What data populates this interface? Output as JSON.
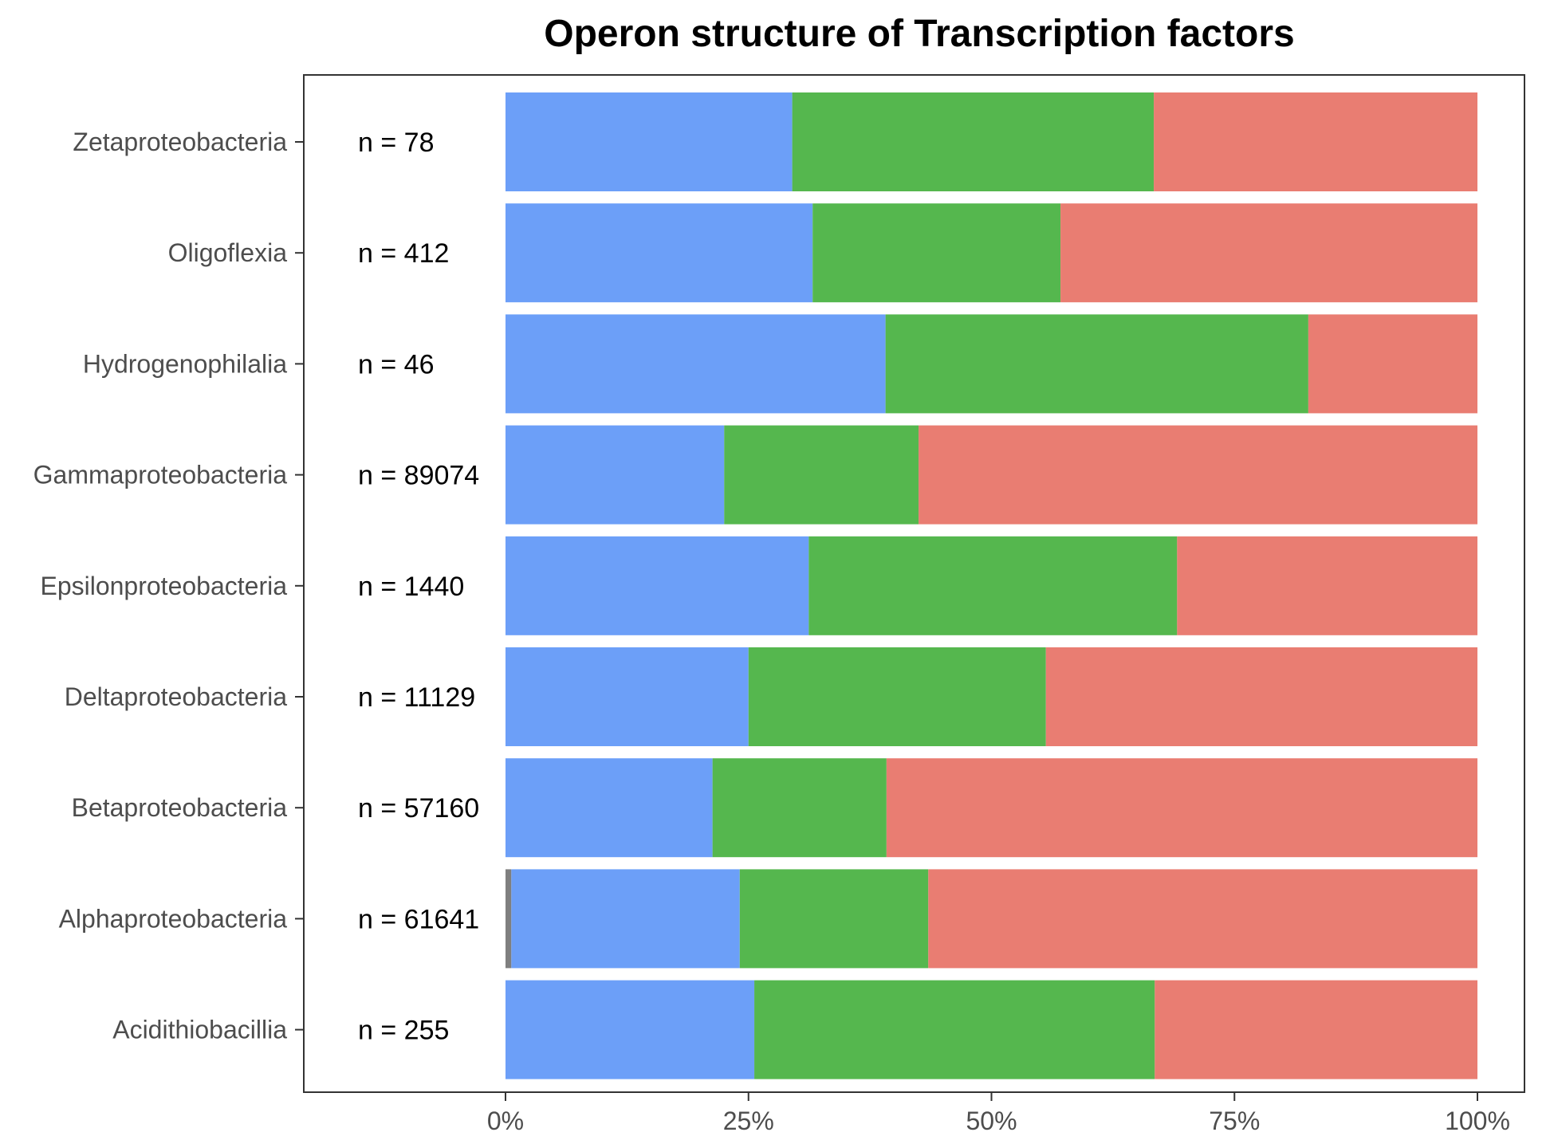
{
  "chart_data": {
    "type": "bar",
    "orientation": "horizontal",
    "stacked": true,
    "normalized": true,
    "title": "Operon structure of Transcription factors",
    "xlabel": "",
    "ylabel": "",
    "xlim": [
      0,
      100
    ],
    "x_ticks": [
      "0%",
      "25%",
      "50%",
      "75%",
      "100%"
    ],
    "grid": false,
    "legend": "none",
    "categories": [
      "Zetaproteobacteria",
      "Oligoflexia",
      "Hydrogenophilalia",
      "Gammaproteobacteria",
      "Epsilonproteobacteria",
      "Deltaproteobacteria",
      "Betaproteobacteria",
      "Alphaproteobacteria",
      "Acidithiobacillia"
    ],
    "n_labels": [
      "n = 78",
      "n = 412",
      "n = 46",
      "n = 89074",
      "n = 1440",
      "n = 11129",
      "n = 57160",
      "n = 61641",
      "n = 255"
    ],
    "series": [
      {
        "color": "#7f7f7f",
        "values": [
          0,
          0,
          0,
          0,
          0,
          0,
          0,
          0.6,
          0
        ]
      },
      {
        "color": "#6c9ff8",
        "values": [
          29.5,
          31.6,
          39.1,
          22.5,
          31.2,
          25.0,
          21.3,
          23.5,
          25.6
        ]
      },
      {
        "color": "#55b74e",
        "values": [
          37.2,
          25.5,
          43.5,
          20.0,
          37.9,
          30.6,
          17.9,
          19.4,
          41.2
        ]
      },
      {
        "color": "#e97d72",
        "values": [
          33.3,
          42.9,
          17.4,
          57.5,
          30.9,
          44.4,
          60.8,
          56.5,
          33.2
        ]
      }
    ]
  }
}
